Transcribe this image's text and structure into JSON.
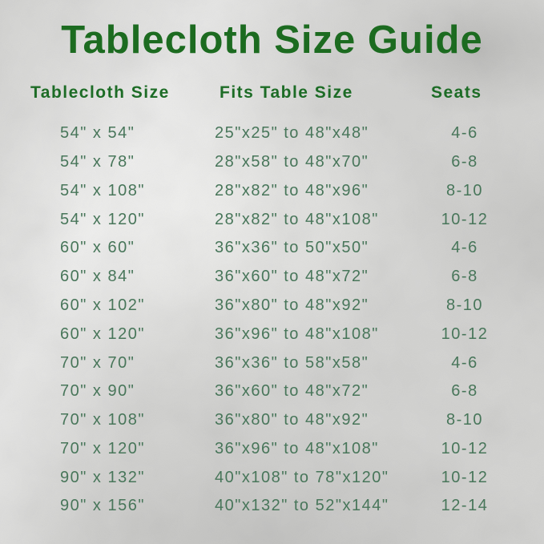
{
  "title": "Tablecloth Size Guide",
  "chart_data": {
    "type": "table",
    "title": "Tablecloth Size Guide",
    "columns": [
      "Tablecloth Size",
      "Fits Table Size",
      "Seats"
    ],
    "rows": [
      [
        "54\" x 54\"",
        "25\"x25\" to 48\"x48\"",
        "4-6"
      ],
      [
        "54\" x 78\"",
        "28\"x58\" to 48\"x70\"",
        "6-8"
      ],
      [
        "54\" x 108\"",
        "28\"x82\" to 48\"x96\"",
        "8-10"
      ],
      [
        "54\" x 120\"",
        "28\"x82\" to 48\"x108\"",
        "10-12"
      ],
      [
        "60\" x 60\"",
        "36\"x36\" to 50\"x50\"",
        "4-6"
      ],
      [
        "60\" x 84\"",
        "36\"x60\" to 48\"x72\"",
        "6-8"
      ],
      [
        "60\" x 102\"",
        "36\"x80\" to 48\"x92\"",
        "8-10"
      ],
      [
        "60\" x 120\"",
        "36\"x96\" to 48\"x108\"",
        "10-12"
      ],
      [
        "70\" x 70\"",
        "36\"x36\" to 58\"x58\"",
        "4-6"
      ],
      [
        "70\" x 90\"",
        "36\"x60\" to 48\"x72\"",
        "6-8"
      ],
      [
        "70\" x 108\"",
        "36\"x80\" to 48\"x92\"",
        "8-10"
      ],
      [
        "70\" x 120\"",
        "36\"x96\" to 48\"x108\"",
        "10-12"
      ],
      [
        "90\" x 132\"",
        "40\"x108\" to 78\"x120\"",
        "10-12"
      ],
      [
        "90\" x 156\"",
        "40\"x132\" to 52\"x144\"",
        "12-14"
      ]
    ],
    "layout": {
      "grid": false,
      "legend": "none",
      "background": "silver-foil"
    }
  },
  "colors": {
    "title_green": "#1c6b20",
    "header_green": "#1d6c26",
    "body_green": "#48765a",
    "background_silver": "#d2d2d0"
  }
}
